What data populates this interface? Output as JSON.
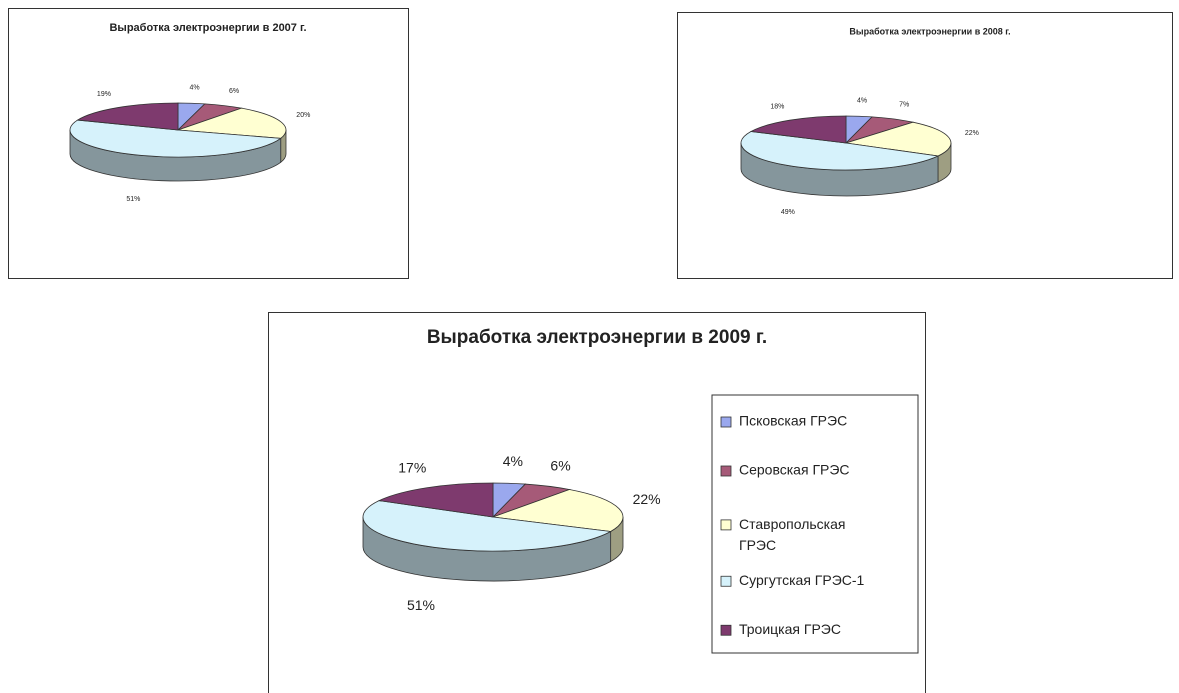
{
  "chart_data": [
    {
      "type": "pie",
      "title": "Выработка электроэнергии в 2007 г.",
      "categories": [
        "Псковская ГРЭС",
        "Серовская ГРЭС",
        "Ставропольская ГРЭС",
        "Сургутская ГРЭС-1",
        "Троицкая ГРЭС"
      ],
      "values": [
        4,
        6,
        20,
        51,
        19
      ],
      "value_labels": [
        "4%",
        "6%",
        "20%",
        "51%",
        "19%"
      ],
      "colors": [
        "#9aa8ee",
        "#a65a78",
        "#ffffd2",
        "#d6f2fb",
        "#7e3a6e"
      ]
    },
    {
      "type": "pie",
      "title": "Выработка электроэнергии в 2008 г.",
      "categories": [
        "Псковская ГРЭС",
        "Серовская ГРЭС",
        "Ставропольская ГРЭС",
        "Сургутская ГРЭС-1",
        "Троицкая ГРЭС"
      ],
      "values": [
        4,
        7,
        22,
        49,
        18
      ],
      "value_labels": [
        "4%",
        "7%",
        "22%",
        "49%",
        "18%"
      ],
      "colors": [
        "#9aa8ee",
        "#a65a78",
        "#ffffd2",
        "#d6f2fb",
        "#7e3a6e"
      ]
    },
    {
      "type": "pie",
      "title": "Выработка электроэнергии в 2009 г.",
      "categories": [
        "Псковская ГРЭС",
        "Серовская ГРЭС",
        "Ставропольская ГРЭС",
        "Сургутская ГРЭС-1",
        "Троицкая ГРЭС"
      ],
      "values": [
        4,
        6,
        22,
        51,
        17
      ],
      "value_labels": [
        "4%",
        "6%",
        "22%",
        "51%",
        "17%"
      ],
      "colors": [
        "#9aa8ee",
        "#a65a78",
        "#ffffd2",
        "#d6f2fb",
        "#7e3a6e"
      ],
      "legend": "right"
    }
  ]
}
